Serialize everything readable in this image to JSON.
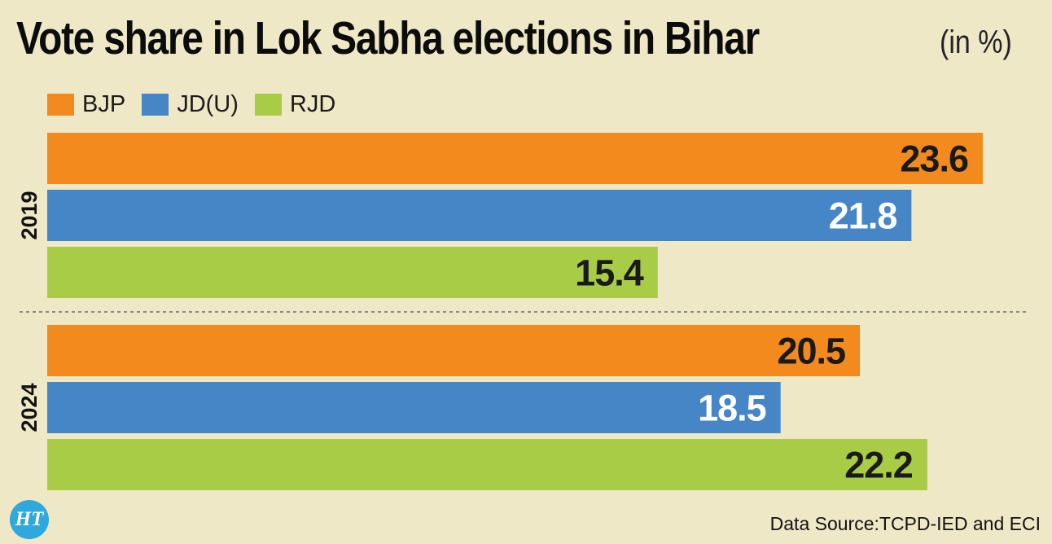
{
  "title": "Vote share in Lok Sabha elections in Bihar",
  "subtitle": "(in %)",
  "source": "Data Source:TCPD-IED and ECI",
  "logo_text": "HT",
  "colors": {
    "BJP": "#f28a1e",
    "JD(U)": "#4686c6",
    "RJD": "#a8cc45",
    "background": "#efe8c6"
  },
  "chart_data": {
    "type": "bar",
    "orientation": "horizontal",
    "title": "Vote share in Lok Sabha elections in Bihar",
    "subtitle": "(in %)",
    "groups": [
      "2019",
      "2024"
    ],
    "legend": [
      "BJP",
      "JD(U)",
      "RJD"
    ],
    "legend_position": "top-left",
    "series": [
      {
        "name": "BJP",
        "values": [
          23.6,
          20.5
        ]
      },
      {
        "name": "JD(U)",
        "values": [
          21.8,
          18.5
        ]
      },
      {
        "name": "RJD",
        "values": [
          15.4,
          22.2
        ]
      }
    ],
    "xlim": [
      0,
      23.6
    ],
    "grid": false
  }
}
